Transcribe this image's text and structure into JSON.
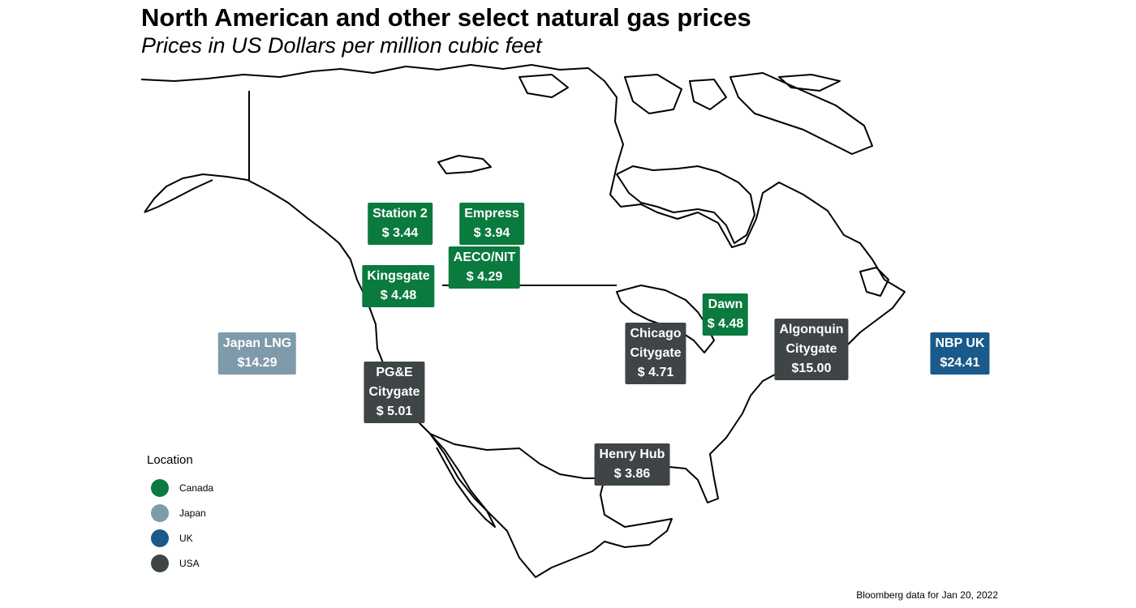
{
  "title": "North American and other select natural gas prices",
  "subtitle": "Prices in US Dollars per million cubic feet",
  "caption": "Bloomberg data for Jan 20, 2022",
  "legend": {
    "title": "Location",
    "items": [
      {
        "label": "Canada",
        "color": "#0b7a3e"
      },
      {
        "label": "Japan",
        "color": "#7f9aaa"
      },
      {
        "label": "UK",
        "color": "#1a5a8a"
      },
      {
        "label": "USA",
        "color": "#3f4446"
      }
    ]
  },
  "hubs": [
    {
      "name": "Station 2",
      "price": "$ 3.44",
      "location": "Canada"
    },
    {
      "name": "Empress",
      "price": "$ 3.94",
      "location": "Canada"
    },
    {
      "name": "AECO/NIT",
      "price": "$ 4.29",
      "location": "Canada"
    },
    {
      "name": "Kingsgate",
      "price": "$ 4.48",
      "location": "Canada"
    },
    {
      "name": "Dawn",
      "price": "$ 4.48",
      "location": "Canada"
    },
    {
      "name": "Japan LNG",
      "price": "$14.29",
      "location": "Japan"
    },
    {
      "name": "NBP UK",
      "price": "$24.41",
      "location": "UK"
    },
    {
      "name": "PG&E Citygate",
      "price": "$ 5.01",
      "location": "USA"
    },
    {
      "name": "Chicago Citygate",
      "price": "$ 4.71",
      "location": "USA"
    },
    {
      "name": "Algonquin Citygate",
      "price": "$15.00",
      "location": "USA"
    },
    {
      "name": "Henry Hub",
      "price": "$ 3.86",
      "location": "USA"
    }
  ]
}
